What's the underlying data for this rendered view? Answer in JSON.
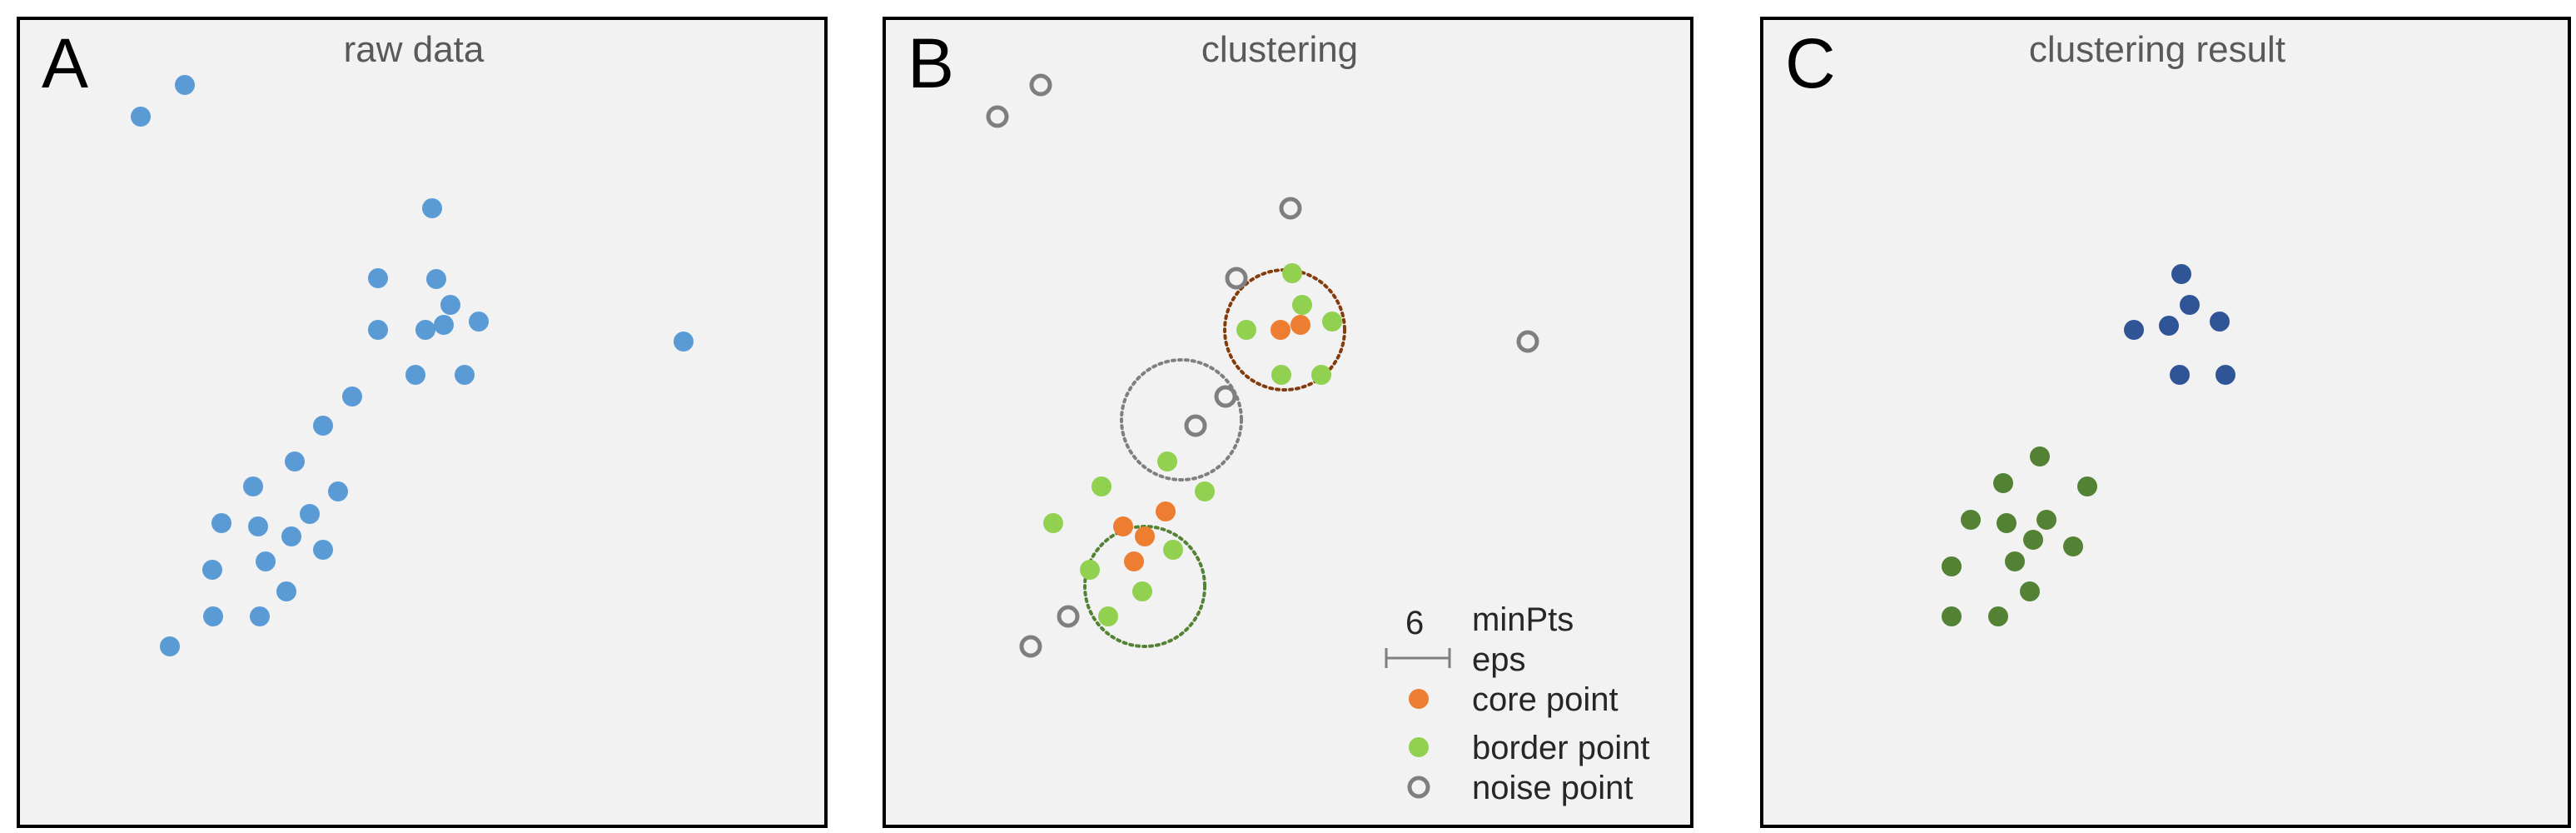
{
  "panels": {
    "a": {
      "letter": "A",
      "title": "raw data"
    },
    "b": {
      "letter": "B",
      "title": "clustering"
    },
    "c": {
      "letter": "C",
      "title": "clustering result"
    }
  },
  "legend": {
    "minpts_value": "6",
    "minpts_label": "minPts",
    "eps_label": "eps",
    "core_label": "core point",
    "border_label": "border point",
    "noise_label": "noise point"
  },
  "colors": {
    "raw": "#5b9bd5",
    "core": "#ed7d31",
    "border": "#92d050",
    "noise": "#7f7f7f",
    "cluster1": "#2f5597",
    "cluster2": "#548235",
    "eps_circle_red": "#843c0c",
    "eps_circle_gray": "#7f7f7f",
    "eps_circle_green": "#548235"
  }
}
